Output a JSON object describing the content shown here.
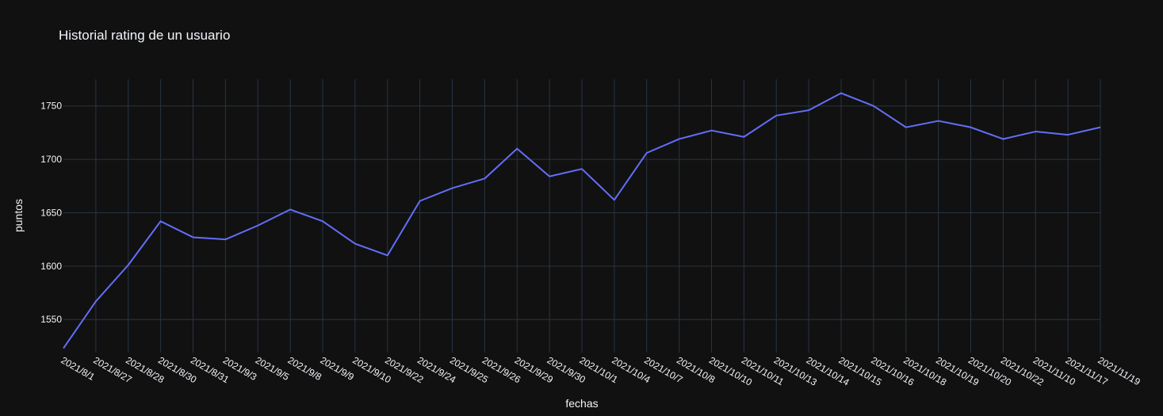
{
  "chart_data": {
    "type": "line",
    "title": "Historial rating de un usuario",
    "xlabel": "fechas",
    "ylabel": "puntos",
    "categories": [
      "2021/8/1",
      "2021/8/27",
      "2021/8/28",
      "2021/8/30",
      "2021/8/31",
      "2021/9/3",
      "2021/9/5",
      "2021/9/8",
      "2021/9/9",
      "2021/9/10",
      "2021/9/22",
      "2021/9/24",
      "2021/9/25",
      "2021/9/26",
      "2021/9/29",
      "2021/9/30",
      "2021/10/1",
      "2021/10/4",
      "2021/10/7",
      "2021/10/8",
      "2021/10/10",
      "2021/10/11",
      "2021/10/13",
      "2021/10/14",
      "2021/10/15",
      "2021/10/16",
      "2021/10/18",
      "2021/10/19",
      "2021/10/20",
      "2021/10/22",
      "2021/11/10",
      "2021/11/17",
      "2021/11/19"
    ],
    "series": [
      {
        "values": [
          1523,
          1567,
          1601,
          1642,
          1627,
          1625,
          1638,
          1653,
          1642,
          1621,
          1610,
          1661,
          1673,
          1682,
          1710,
          1684,
          1691,
          1662,
          1706,
          1719,
          1727,
          1721,
          1741,
          1746,
          1762,
          1750,
          1730,
          1736,
          1730,
          1719,
          1726,
          1723,
          1730
        ],
        "color": "#636efa"
      }
    ],
    "yticks": [
      1550,
      1600,
      1650,
      1700,
      1750
    ],
    "ylim": [
      1519,
      1775
    ],
    "grid": true,
    "background": "#111111",
    "grid_color": "#283442",
    "text_color": "#f2f5fa"
  }
}
